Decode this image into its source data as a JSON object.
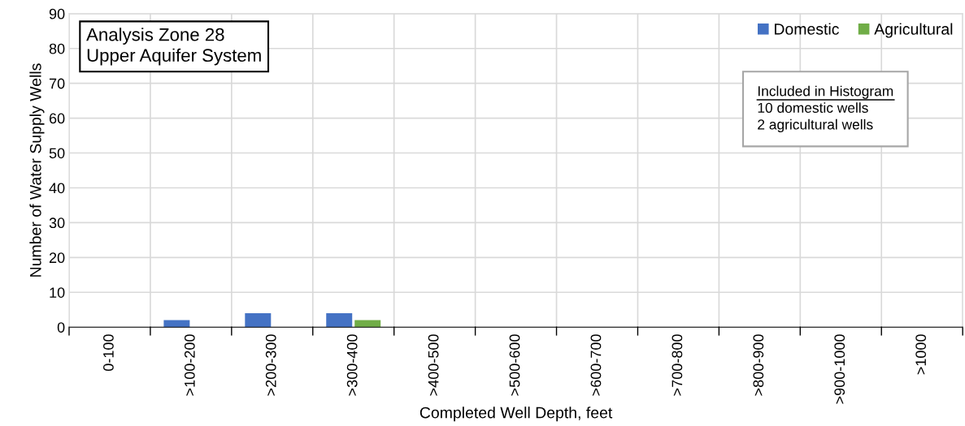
{
  "chart_data": {
    "type": "bar",
    "title": "Analysis Zone 28\nUpper Aquifer System",
    "xlabel": "Completed Well Depth, feet",
    "ylabel": "Number of Water Supply Wells",
    "categories": [
      "0-100",
      ">100-200",
      ">200-300",
      ">300-400",
      ">400-500",
      ">500-600",
      ">600-700",
      ">700-800",
      ">800-900",
      ">900-1000",
      ">1000"
    ],
    "series": [
      {
        "name": "Domestic",
        "color": "#4472c4",
        "values": [
          0,
          2,
          4,
          4,
          0,
          0,
          0,
          0,
          0,
          0,
          0
        ]
      },
      {
        "name": "Agricultural",
        "color": "#70ad47",
        "values": [
          0,
          0,
          0,
          2,
          0,
          0,
          0,
          0,
          0,
          0,
          0
        ]
      }
    ],
    "ylim": [
      0,
      90
    ],
    "yticks": [
      0,
      10,
      20,
      30,
      40,
      50,
      60,
      70,
      80,
      90
    ],
    "grid": true,
    "legend": "top right",
    "annotations": [
      "Included in Histogram",
      "10 domestic wells",
      "2 agricultural wells"
    ]
  }
}
